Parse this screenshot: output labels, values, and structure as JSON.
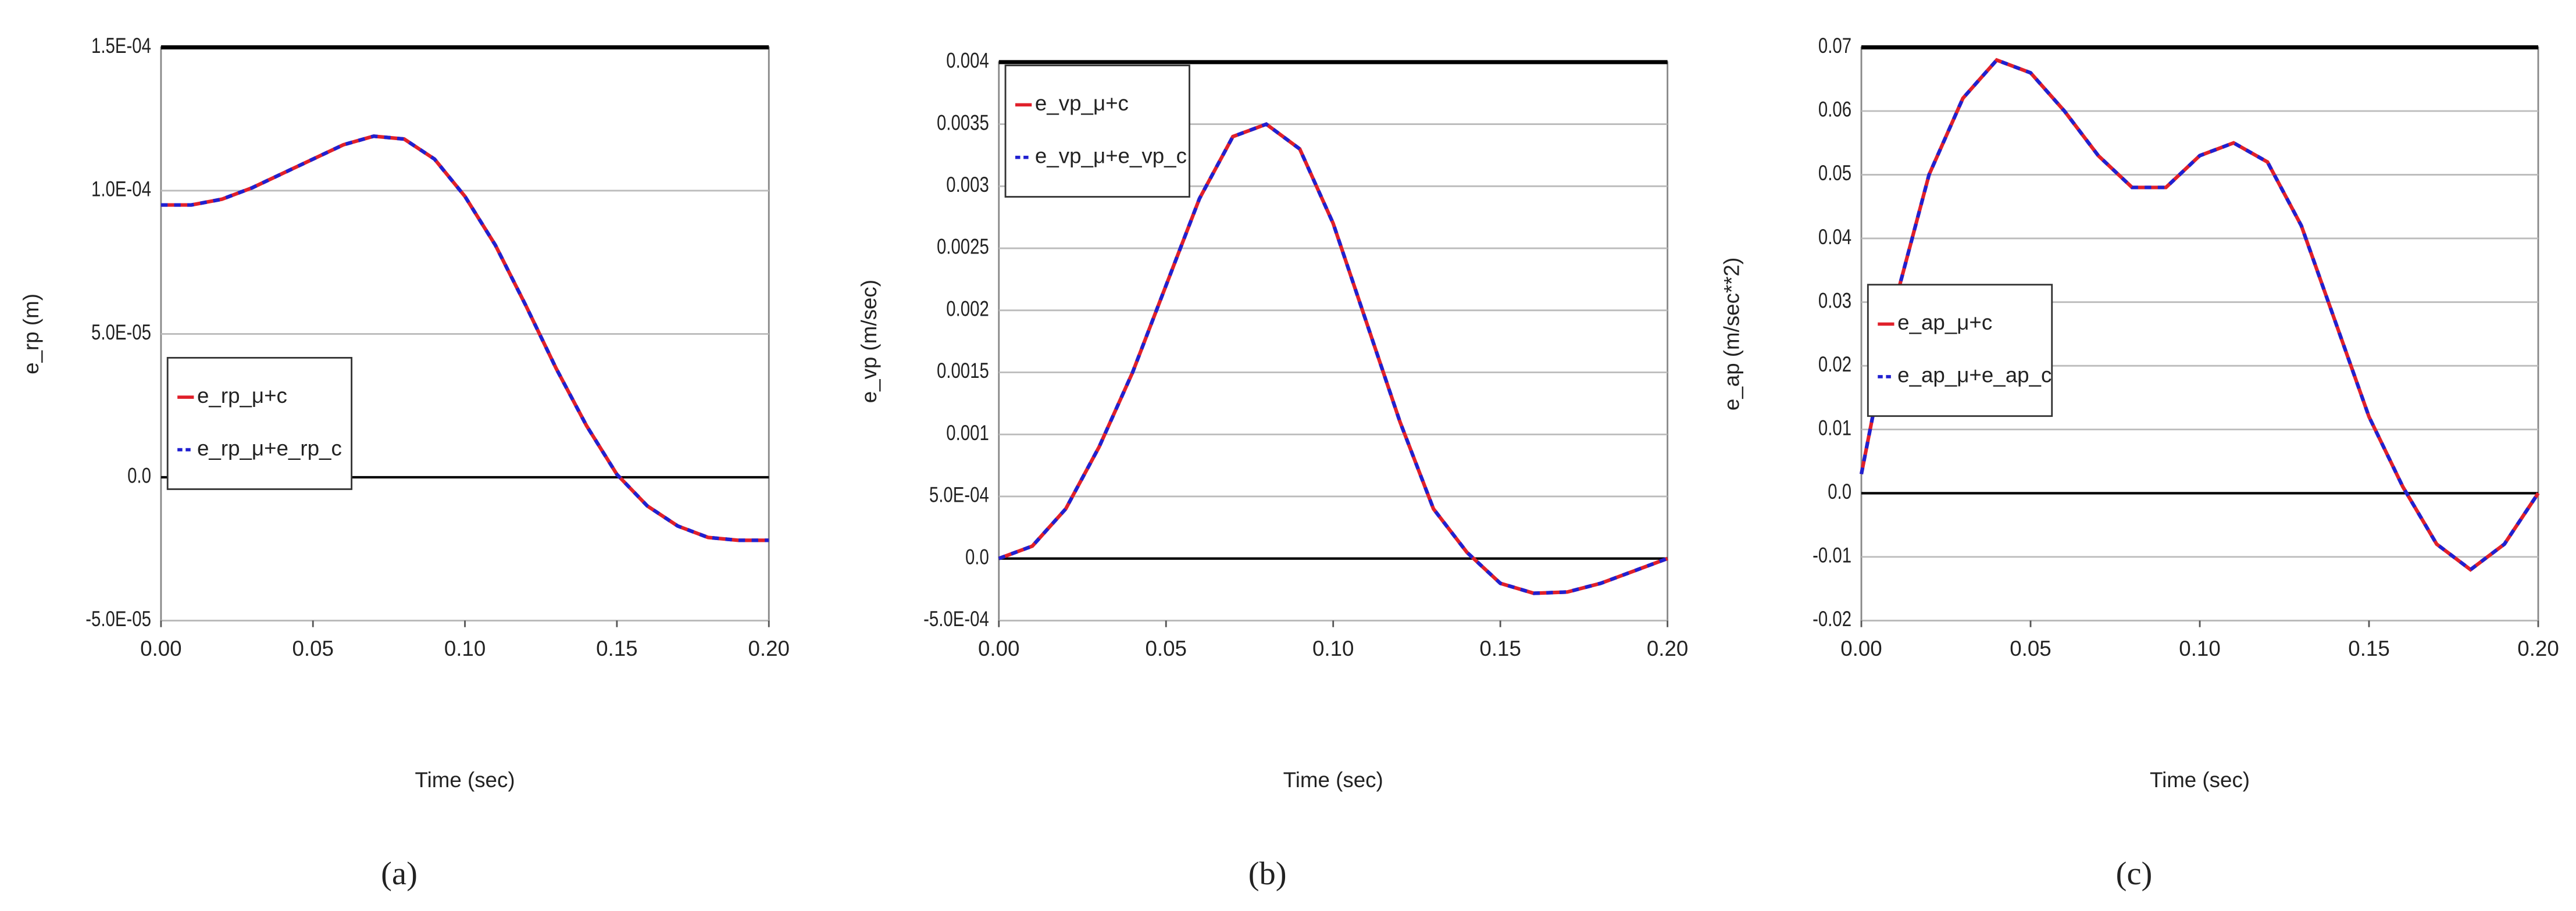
{
  "chart_data": [
    {
      "type": "line",
      "caption": "(a)",
      "xlabel": "Time (sec)",
      "ylabel": "e_rp (m)",
      "legend": "lower left",
      "grid": true,
      "x": [
        0,
        0.01,
        0.02,
        0.03,
        0.04,
        0.05,
        0.06,
        0.07,
        0.08,
        0.09,
        0.1,
        0.11,
        0.12,
        0.13,
        0.14,
        0.15,
        0.16,
        0.17,
        0.18,
        0.19,
        0.2
      ],
      "series": [
        {
          "name": "e_rp_μ+c",
          "color": "#e0202a",
          "values": [
            9.5e-05,
            9.5e-05,
            9.7e-05,
            0.000101,
            0.000106,
            0.000111,
            0.000116,
            0.000119,
            0.000118,
            0.000111,
            9.8e-05,
            8.1e-05,
            6e-05,
            3.8e-05,
            1.8e-05,
            1e-06,
            -1e-05,
            -1.7e-05,
            -2.1e-05,
            -2.2e-05,
            -2.2e-05
          ]
        },
        {
          "name": "e_rp_μ+e_rp_c",
          "color": "#2020d0",
          "values": [
            9.5e-05,
            9.5e-05,
            9.7e-05,
            0.000101,
            0.000106,
            0.000111,
            0.000116,
            0.000119,
            0.000118,
            0.000111,
            9.8e-05,
            8.1e-05,
            6e-05,
            3.8e-05,
            1.8e-05,
            1e-06,
            -1e-05,
            -1.7e-05,
            -2.1e-05,
            -2.2e-05,
            -2.2e-05
          ]
        }
      ],
      "xlim": [
        0,
        0.2
      ],
      "ylim": [
        -5e-05,
        0.00015
      ],
      "xticks": [
        {
          "value": 0,
          "label": "0.00"
        },
        0.05,
        {
          "value": 0.1,
          "label": "0.10"
        },
        0.15,
        {
          "value": 0.2,
          "label": "0.20"
        }
      ],
      "yticks": [
        {
          "value": 0.00015,
          "label": "1.5E-04"
        },
        {
          "value": 0.0001,
          "label": "1.0E-04"
        },
        {
          "value": 5e-05,
          "label": "5.0E-05"
        },
        {
          "value": 0,
          "label": "0.0"
        },
        {
          "value": -5e-05,
          "label": "-5.0E-05"
        }
      ]
    },
    {
      "type": "line",
      "caption": "(b)",
      "xlabel": "Time (sec)",
      "ylabel": "e_vp (m/sec)",
      "legend": "upper left",
      "grid": true,
      "x": [
        0,
        0.01,
        0.02,
        0.03,
        0.04,
        0.05,
        0.06,
        0.07,
        0.08,
        0.09,
        0.1,
        0.11,
        0.12,
        0.13,
        0.14,
        0.15,
        0.16,
        0.17,
        0.18,
        0.19,
        0.2
      ],
      "series": [
        {
          "name": "e_vp_μ+c",
          "color": "#e0202a",
          "values": [
            0,
            0.0001,
            0.0004,
            0.0009,
            0.0015,
            0.0022,
            0.0029,
            0.0034,
            0.0035,
            0.0033,
            0.0027,
            0.0019,
            0.0011,
            0.0004,
            5e-05,
            -0.0002,
            -0.00028,
            -0.00027,
            -0.0002,
            -0.0001,
            0
          ]
        },
        {
          "name": "e_vp_μ+e_vp_c",
          "color": "#2020d0",
          "values": [
            0,
            0.0001,
            0.0004,
            0.0009,
            0.0015,
            0.0022,
            0.0029,
            0.0034,
            0.0035,
            0.0033,
            0.0027,
            0.0019,
            0.0011,
            0.0004,
            5e-05,
            -0.0002,
            -0.00028,
            -0.00027,
            -0.0002,
            -0.0001,
            0
          ]
        }
      ],
      "xlim": [
        0,
        0.2
      ],
      "ylim": [
        -0.0005,
        0.004
      ],
      "xticks": [
        {
          "value": 0,
          "label": "0.00"
        },
        0.05,
        {
          "value": 0.1,
          "label": "0.10"
        },
        0.15,
        {
          "value": 0.2,
          "label": "0.20"
        }
      ],
      "yticks": [
        0.004,
        0.0035,
        0.003,
        0.0025,
        0.002,
        0.0015,
        0.001,
        {
          "value": 0.0005,
          "label": "5.0E-04"
        },
        {
          "value": 0,
          "label": "0.0"
        },
        {
          "value": -0.0005,
          "label": "-5.0E-04"
        }
      ]
    },
    {
      "type": "line",
      "caption": "(c)",
      "xlabel": "Time (sec)",
      "ylabel": "e_ap (m/sec**2)",
      "legend": "center left",
      "grid": true,
      "x": [
        0,
        0.01,
        0.02,
        0.03,
        0.04,
        0.05,
        0.06,
        0.07,
        0.08,
        0.09,
        0.1,
        0.11,
        0.12,
        0.13,
        0.14,
        0.15,
        0.16,
        0.17,
        0.18,
        0.19,
        0.2
      ],
      "series": [
        {
          "name": "e_ap_μ+c",
          "color": "#e0202a",
          "values": [
            0.003,
            0.03,
            0.05,
            0.062,
            0.068,
            0.066,
            0.06,
            0.053,
            0.048,
            0.048,
            0.053,
            0.055,
            0.052,
            0.042,
            0.027,
            0.012,
            0.001,
            -0.008,
            -0.012,
            -0.008,
            0
          ]
        },
        {
          "name": "e_ap_μ+e_ap_c",
          "color": "#2020d0",
          "values": [
            0.003,
            0.03,
            0.05,
            0.062,
            0.068,
            0.066,
            0.06,
            0.053,
            0.048,
            0.048,
            0.053,
            0.055,
            0.052,
            0.042,
            0.027,
            0.012,
            0.001,
            -0.008,
            -0.012,
            -0.008,
            0
          ]
        }
      ],
      "xlim": [
        0,
        0.2
      ],
      "ylim": [
        -0.02,
        0.07
      ],
      "xticks": [
        {
          "value": 0,
          "label": "0.00"
        },
        0.05,
        {
          "value": 0.1,
          "label": "0.10"
        },
        0.15,
        {
          "value": 0.2,
          "label": "0.20"
        }
      ],
      "yticks": [
        0.07,
        0.06,
        0.05,
        0.04,
        0.03,
        0.02,
        0.01,
        {
          "value": 0,
          "label": "0.0"
        },
        -0.01,
        -0.02
      ]
    }
  ]
}
